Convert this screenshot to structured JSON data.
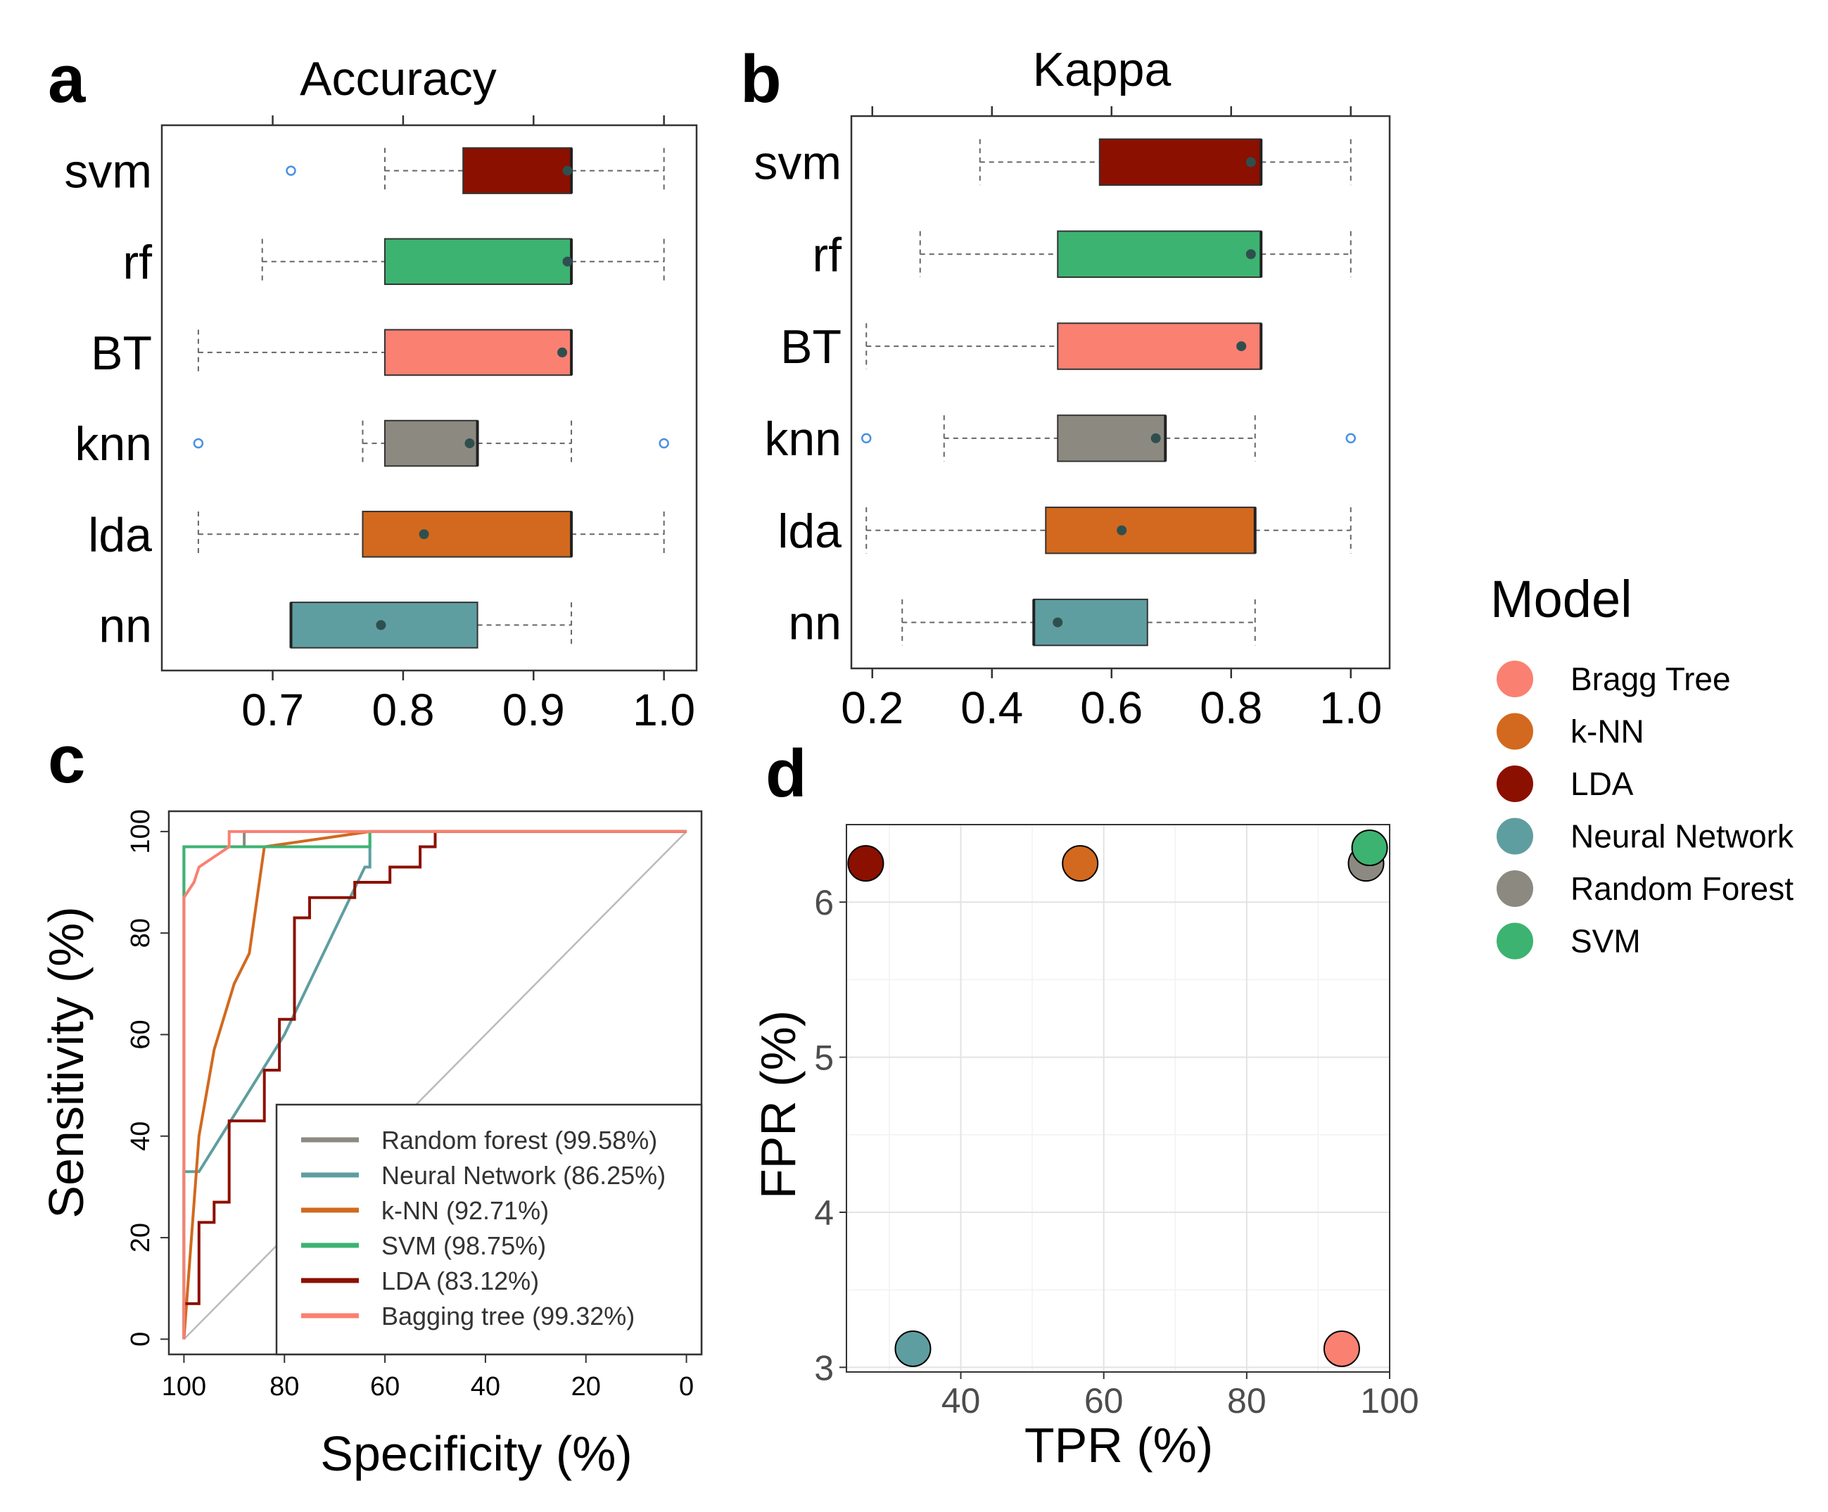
{
  "panel_letters": [
    "a",
    "b",
    "c",
    "d"
  ],
  "colors": {
    "svm": "#8B1000",
    "rf": "#3CB371",
    "BT": "#FA8072",
    "knn": "#8C8A80",
    "lda": "#D2691E",
    "nn": "#5F9EA0",
    "outlier": "#4A90E2",
    "mean_point": "#2F4F4F"
  },
  "chart_data": [
    {
      "panel": "a",
      "type": "boxplot",
      "title": "Accuracy",
      "orientation": "horizontal",
      "xlim": [
        0.615,
        1.025
      ],
      "xticks": [
        0.7,
        0.8,
        0.9,
        1.0
      ],
      "xtick_labels": [
        "0.7",
        "0.8",
        "0.9",
        "1.0"
      ],
      "categories": [
        "svm",
        "rf",
        "BT",
        "knn",
        "lda",
        "nn"
      ],
      "series": [
        {
          "label": "svm",
          "whisker_low": 0.786,
          "q1": 0.846,
          "median": 0.929,
          "q3": 0.929,
          "whisker_high": 1.0,
          "mean": 0.926,
          "outliers": [
            0.714
          ]
        },
        {
          "label": "rf",
          "whisker_low": 0.692,
          "q1": 0.786,
          "median": 0.929,
          "q3": 0.929,
          "whisker_high": 1.0,
          "mean": 0.926,
          "outliers": []
        },
        {
          "label": "BT",
          "whisker_low": 0.643,
          "q1": 0.786,
          "median": 0.929,
          "q3": 0.929,
          "whisker_high": 0.929,
          "mean": 0.922,
          "outliers": []
        },
        {
          "label": "knn",
          "whisker_low": 0.769,
          "q1": 0.786,
          "median": 0.857,
          "q3": 0.857,
          "whisker_high": 0.929,
          "mean": 0.851,
          "outliers": [
            0.643,
            1.0
          ]
        },
        {
          "label": "lda",
          "whisker_low": 0.643,
          "q1": 0.769,
          "median": 0.929,
          "q3": 0.929,
          "whisker_high": 1.0,
          "mean": 0.816,
          "outliers": []
        },
        {
          "label": "nn",
          "whisker_low": 0.714,
          "q1": 0.714,
          "median": 0.714,
          "q3": 0.857,
          "whisker_high": 0.929,
          "mean": 0.783,
          "outliers": []
        }
      ]
    },
    {
      "panel": "b",
      "type": "boxplot",
      "title": "Kappa",
      "orientation": "horizontal",
      "xlim": [
        0.165,
        1.065
      ],
      "xticks": [
        0.2,
        0.4,
        0.6,
        0.8,
        1.0
      ],
      "xtick_labels": [
        "0.2",
        "0.4",
        "0.6",
        "0.8",
        "1.0"
      ],
      "categories": [
        "svm",
        "rf",
        "BT",
        "knn",
        "lda",
        "nn"
      ],
      "series": [
        {
          "label": "svm",
          "whisker_low": 0.38,
          "q1": 0.58,
          "median": 0.85,
          "q3": 0.85,
          "whisker_high": 1.0,
          "mean": 0.833,
          "outliers": []
        },
        {
          "label": "rf",
          "whisker_low": 0.28,
          "q1": 0.51,
          "median": 0.85,
          "q3": 0.85,
          "whisker_high": 1.0,
          "mean": 0.833,
          "outliers": []
        },
        {
          "label": "BT",
          "whisker_low": 0.19,
          "q1": 0.51,
          "median": 0.85,
          "q3": 0.85,
          "whisker_high": 0.85,
          "mean": 0.817,
          "outliers": []
        },
        {
          "label": "knn",
          "whisker_low": 0.32,
          "q1": 0.51,
          "median": 0.69,
          "q3": 0.69,
          "whisker_high": 0.84,
          "mean": 0.674,
          "outliers": [
            0.19,
            1.0
          ]
        },
        {
          "label": "lda",
          "whisker_low": 0.19,
          "q1": 0.49,
          "median": 0.84,
          "q3": 0.84,
          "whisker_high": 1.0,
          "mean": 0.617,
          "outliers": []
        },
        {
          "label": "nn",
          "whisker_low": 0.25,
          "q1": 0.47,
          "median": 0.47,
          "q3": 0.66,
          "whisker_high": 0.84,
          "mean": 0.51,
          "outliers": []
        }
      ]
    },
    {
      "panel": "c",
      "type": "line",
      "xlabel": "Specificity (%)",
      "ylabel": "Sensitivity (%)",
      "xlim": [
        103,
        -3
      ],
      "ylim": [
        -3,
        104
      ],
      "xticks": [
        100,
        80,
        60,
        40,
        20,
        0
      ],
      "yticks": [
        0,
        20,
        40,
        60,
        80,
        100
      ],
      "series": [
        {
          "name": "Random forest (99.58%)",
          "color": "#8C8A80",
          "points": [
            [
              100,
              0
            ],
            [
              100,
              97
            ],
            [
              88,
              97
            ],
            [
              88,
              100
            ],
            [
              0,
              100
            ]
          ]
        },
        {
          "name": "Neural Network (86.25%)",
          "color": "#5F9EA0",
          "points": [
            [
              100,
              0
            ],
            [
              100,
              33
            ],
            [
              97,
              33
            ],
            [
              80,
              60
            ],
            [
              64,
              93
            ],
            [
              63,
              93
            ],
            [
              63,
              100
            ],
            [
              0,
              100
            ]
          ]
        },
        {
          "name": "k-NN (92.71%)",
          "color": "#D2691E",
          "points": [
            [
              100,
              0
            ],
            [
              97,
              40
            ],
            [
              94,
              57
            ],
            [
              90,
              70
            ],
            [
              87,
              76
            ],
            [
              84,
              97
            ],
            [
              70,
              99
            ],
            [
              63,
              100
            ],
            [
              0,
              100
            ]
          ]
        },
        {
          "name": "SVM (98.75%)",
          "color": "#3CB371",
          "points": [
            [
              100,
              0
            ],
            [
              100,
              97
            ],
            [
              63,
              97
            ],
            [
              63,
              100
            ],
            [
              0,
              100
            ]
          ]
        },
        {
          "name": "LDA (83.12%)",
          "color": "#8B1000",
          "points": [
            [
              100,
              0
            ],
            [
              100,
              7
            ],
            [
              97,
              7
            ],
            [
              97,
              23
            ],
            [
              94,
              23
            ],
            [
              94,
              27
            ],
            [
              91,
              27
            ],
            [
              91,
              43
            ],
            [
              84,
              43
            ],
            [
              84,
              53
            ],
            [
              81,
              53
            ],
            [
              81,
              63
            ],
            [
              78,
              63
            ],
            [
              78,
              83
            ],
            [
              75,
              83
            ],
            [
              75,
              87
            ],
            [
              66,
              87
            ],
            [
              66,
              90
            ],
            [
              59,
              90
            ],
            [
              59,
              93
            ],
            [
              53,
              93
            ],
            [
              53,
              97
            ],
            [
              50,
              97
            ],
            [
              50,
              100
            ],
            [
              0,
              100
            ]
          ]
        },
        {
          "name": "Bagging tree (99.32%)",
          "color": "#FA8072",
          "points": [
            [
              100,
              0
            ],
            [
              100,
              87
            ],
            [
              98,
              90
            ],
            [
              97,
              93
            ],
            [
              94,
              95
            ],
            [
              91,
              97
            ],
            [
              91,
              100
            ],
            [
              0,
              100
            ]
          ]
        }
      ]
    },
    {
      "panel": "d",
      "type": "scatter",
      "xlabel": "TPR (%)",
      "ylabel": "FPR (%)",
      "xlim": [
        24,
        100
      ],
      "ylim": [
        2.97,
        6.5
      ],
      "xticks": [
        40,
        60,
        80,
        100
      ],
      "yticks": [
        3,
        4,
        5,
        6
      ],
      "points": [
        {
          "label": "LDA",
          "x": 26.7,
          "y": 6.25,
          "color": "#8B1000"
        },
        {
          "label": "k-NN",
          "x": 56.7,
          "y": 6.25,
          "color": "#D2691E"
        },
        {
          "label": "Random Forest",
          "x": 96.7,
          "y": 6.25,
          "color": "#8C8A80"
        },
        {
          "label": "SVM",
          "x": 97.2,
          "y": 6.35,
          "color": "#3CB371"
        },
        {
          "label": "Neural Network",
          "x": 33.3,
          "y": 3.12,
          "color": "#5F9EA0"
        },
        {
          "label": "Bragg Tree",
          "x": 93.3,
          "y": 3.12,
          "color": "#FA8072"
        }
      ],
      "legend": {
        "title": "Model",
        "position": "right",
        "items": [
          {
            "label": "Bragg Tree",
            "color": "#FA8072"
          },
          {
            "label": "k-NN",
            "color": "#D2691E"
          },
          {
            "label": "LDA",
            "color": "#8B1000"
          },
          {
            "label": "Neural Network",
            "color": "#5F9EA0"
          },
          {
            "label": "Random Forest",
            "color": "#8C8A80"
          },
          {
            "label": "SVM",
            "color": "#3CB371"
          }
        ]
      }
    }
  ]
}
